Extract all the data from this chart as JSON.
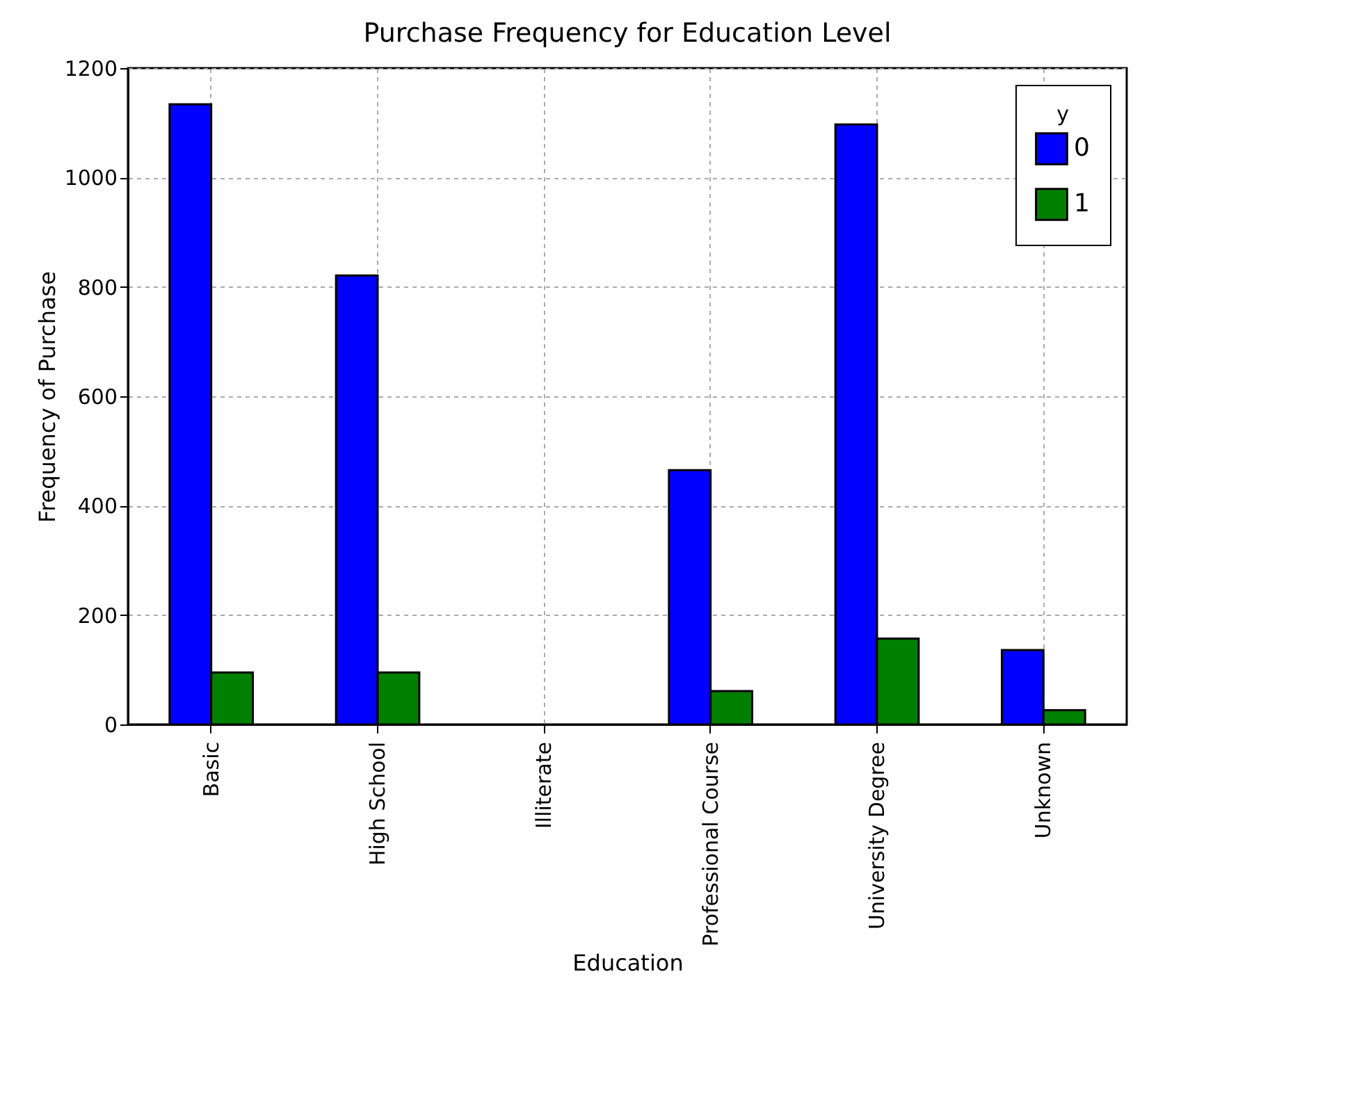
{
  "chart_data": {
    "type": "bar",
    "title": "Purchase Frequency for Education Level",
    "xlabel": "Education",
    "ylabel": "Frequency of Purchase",
    "legend_title": "y",
    "categories": [
      "Basic",
      "High School",
      "Illiterate",
      "Professional Course",
      "University Degree",
      "Unknown"
    ],
    "series": [
      {
        "name": "0",
        "color": "#0000ff",
        "values": [
          1134,
          821,
          null,
          465,
          1097,
          136
        ]
      },
      {
        "name": "1",
        "color": "#008000",
        "values": [
          95,
          95,
          null,
          61,
          157,
          26
        ]
      }
    ],
    "ylim": [
      0,
      1200
    ],
    "yticks": [
      0,
      200,
      400,
      600,
      800,
      1000,
      1200
    ],
    "grid": true,
    "legend": "top right"
  }
}
